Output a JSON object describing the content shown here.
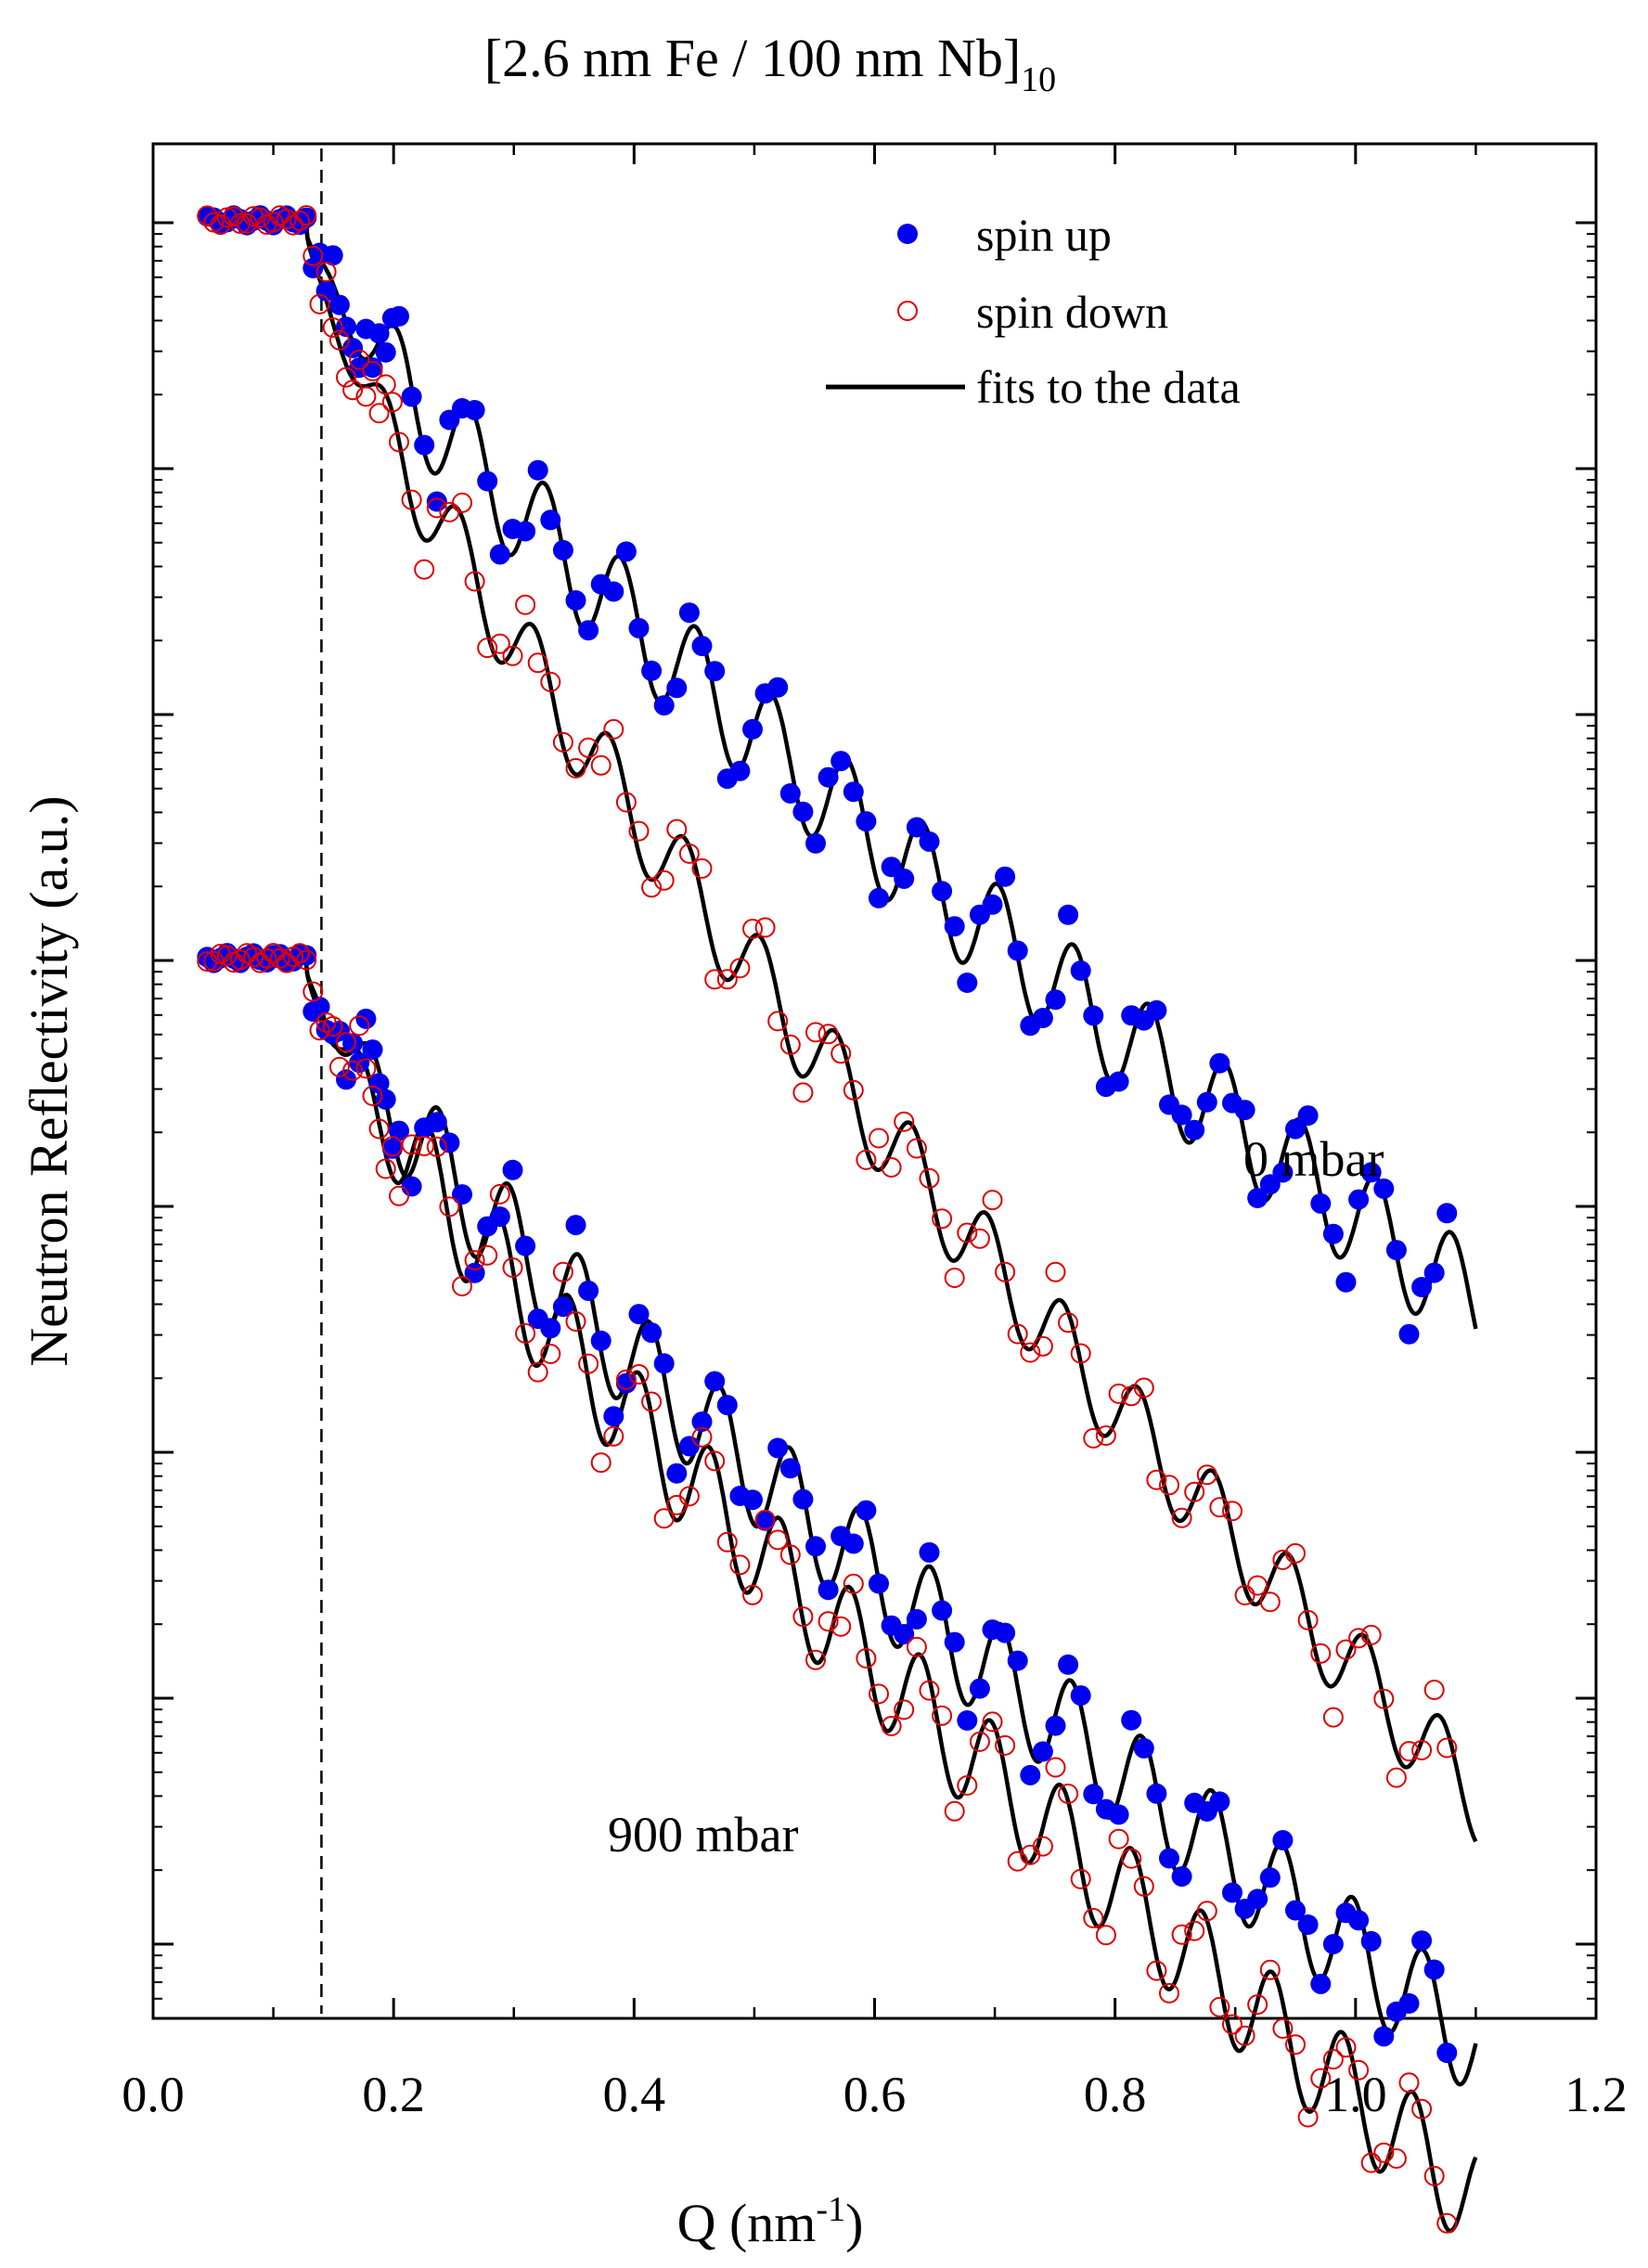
{
  "chart_data": {
    "type": "scatter",
    "title": "[2.6 nm Fe / 100 nm Nb]",
    "title_subscript": "10",
    "xlabel": "Q (nm",
    "xlabel_superscript": "-1",
    "xlabel_suffix": ")",
    "ylabel": "Neutron Reflectivity (a.u.)",
    "xlim": [
      0.0,
      1.2
    ],
    "x_ticks": [
      "0.0",
      "0.2",
      "0.4",
      "0.6",
      "0.8",
      "1.0",
      "1.2"
    ],
    "y_scale": "log (arbitrary units, 8 decades, unlabeled ticks)",
    "legend": [
      {
        "label": "spin up",
        "marker": "filled-circle",
        "color": "#0000ee"
      },
      {
        "label": "spin down",
        "marker": "open-circle",
        "color": "#dd0000"
      },
      {
        "label": "fits to the data",
        "marker": "line",
        "color": "#000000"
      }
    ],
    "annotations": {
      "top_group": "0 mbar",
      "bottom_group": "900 mbar",
      "critical_edge_q": 0.14
    },
    "groups": [
      {
        "name": "0 mbar",
        "plateau_log": 0.0,
        "series": [
          {
            "name": "spin up",
            "period": 0.0628,
            "decay": 3.55,
            "amplitude": 0.22,
            "edge_offset": 0.0
          },
          {
            "name": "spin down",
            "period": 0.0628,
            "decay": 5.6,
            "amplitude": 0.18,
            "edge_offset": 0.0
          }
        ]
      },
      {
        "name": "900 mbar",
        "plateau_log": -3.0,
        "series": [
          {
            "name": "spin up",
            "period": 0.0585,
            "decay": 3.55,
            "amplitude": 0.22,
            "edge_offset": 0.0
          },
          {
            "name": "spin down",
            "period": 0.0585,
            "decay": 4.2,
            "amplitude": 0.22,
            "edge_offset": 0.0
          }
        ]
      }
    ],
    "q_range": [
      0.045,
      1.1
    ]
  },
  "colors": {
    "spin_up": "#0000ee",
    "spin_down": "#dd0000",
    "fit": "#000000",
    "axis": "#000000"
  }
}
